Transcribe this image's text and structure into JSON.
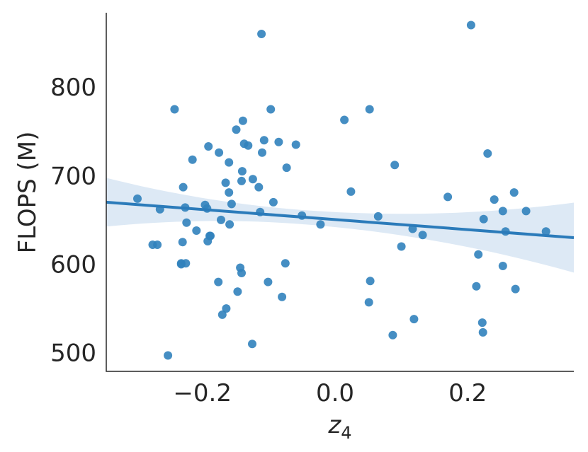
{
  "chart_data": {
    "type": "scatter",
    "title": "",
    "xlabel": "z",
    "xlabel_subscript": "4",
    "ylabel": "FLOPS (M)",
    "xlim": [
      -0.345,
      0.36
    ],
    "ylim": [
      479,
      884
    ],
    "xticks": [
      -0.2,
      0.0,
      0.2
    ],
    "xtick_labels": [
      "−0.2",
      "0.0",
      "0.2"
    ],
    "yticks": [
      500,
      600,
      700,
      800
    ],
    "ytick_labels": [
      "500",
      "600",
      "700",
      "800"
    ],
    "grid": false,
    "point_color": "#3182bd",
    "line_color": "#2b7bba",
    "band_color": "#c6dbef",
    "regression": {
      "x": [
        -0.345,
        0.36
      ],
      "y": [
        670,
        630
      ],
      "ci_upper": [
        696,
        672
      ],
      "ci_lower": [
        641,
        593
      ]
    },
    "points": {
      "x": [
        -0.298,
        -0.275,
        -0.268,
        -0.264,
        -0.252,
        -0.242,
        -0.232,
        -0.232,
        -0.23,
        -0.229,
        -0.226,
        -0.224,
        -0.225,
        -0.215,
        -0.209,
        -0.196,
        -0.193,
        -0.191,
        -0.192,
        -0.189,
        -0.188,
        -0.176,
        -0.175,
        -0.172,
        -0.17,
        -0.164,
        -0.165,
        -0.16,
        -0.16,
        -0.159,
        -0.156,
        -0.149,
        -0.147,
        -0.143,
        -0.141,
        -0.141,
        -0.14,
        -0.139,
        -0.137,
        -0.131,
        -0.125,
        -0.124,
        -0.115,
        -0.113,
        -0.111,
        -0.11,
        -0.107,
        -0.101,
        -0.097,
        -0.093,
        -0.085,
        -0.08,
        -0.075,
        -0.073,
        -0.059,
        -0.05,
        -0.022,
        0.014,
        0.024,
        0.051,
        0.053,
        0.052,
        0.065,
        0.087,
        0.09,
        0.1,
        0.117,
        0.119,
        0.132,
        0.17,
        0.205,
        0.213,
        0.216,
        0.222,
        0.223,
        0.224,
        0.23,
        0.24,
        0.253,
        0.253,
        0.257,
        0.27,
        0.272,
        0.288,
        0.318
      ],
      "y": [
        674,
        622,
        622,
        662,
        497,
        775,
        600,
        601,
        625,
        687,
        664,
        647,
        601,
        718,
        638,
        667,
        663,
        733,
        626,
        632,
        632,
        580,
        726,
        650,
        543,
        550,
        692,
        715,
        681,
        645,
        668,
        752,
        569,
        596,
        590,
        694,
        705,
        762,
        736,
        734,
        510,
        696,
        687,
        659,
        860,
        726,
        740,
        580,
        775,
        670,
        738,
        563,
        601,
        709,
        735,
        655,
        645,
        763,
        682,
        557,
        581,
        775,
        654,
        520,
        712,
        620,
        640,
        538,
        633,
        676,
        870,
        575,
        611,
        534,
        523,
        651,
        725,
        673,
        660,
        598,
        637,
        681,
        572,
        660,
        637
      ]
    }
  }
}
